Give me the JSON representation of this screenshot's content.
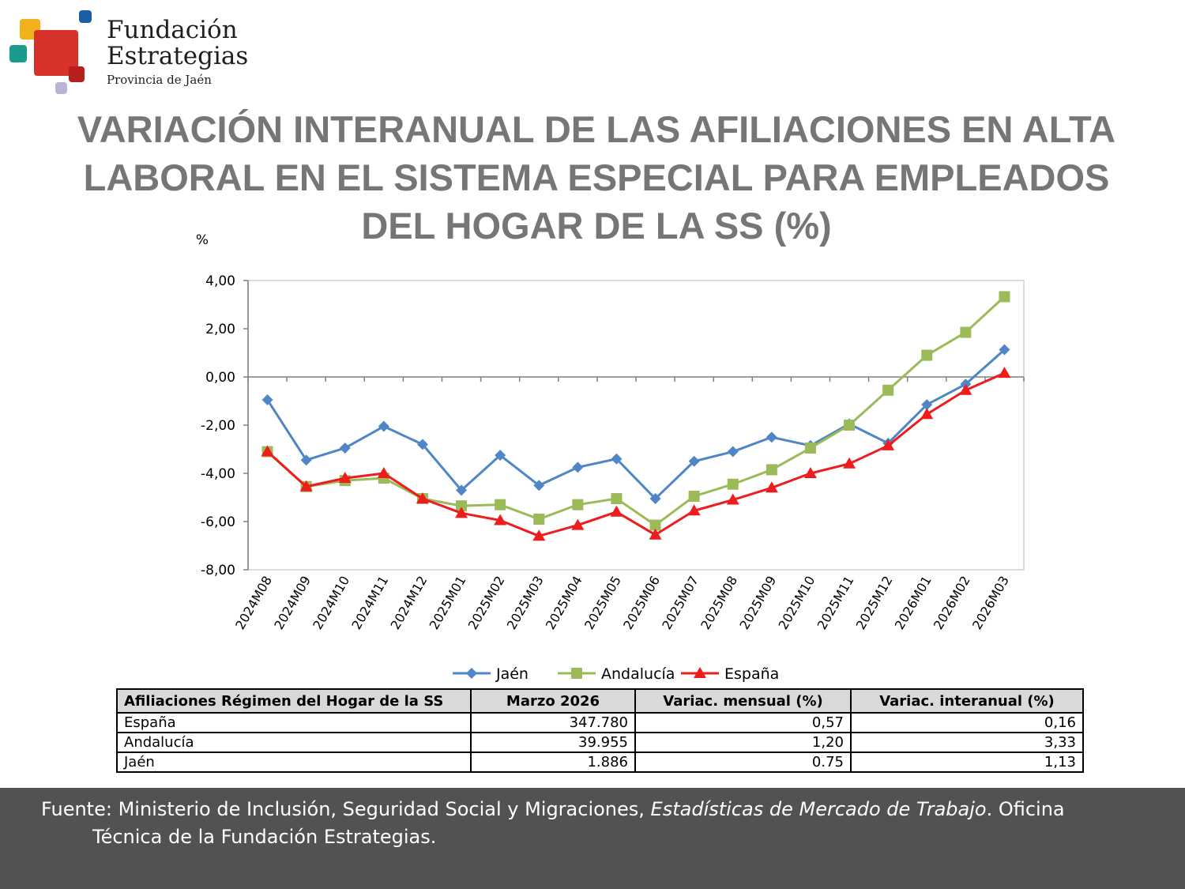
{
  "logo": {
    "line1": "Fundación",
    "line2": "Estrategias",
    "line3": "Provincia de Jaén"
  },
  "title": {
    "line1": "VARIACIÓN INTERANUAL DE LAS AFILIACIONES EN ALTA",
    "line2": "LABORAL EN EL SISTEMA ESPECIAL PARA EMPLEADOS",
    "line3": "DEL HOGAR DE LA SS (%)"
  },
  "chart_data": {
    "type": "line",
    "ylabel": "%",
    "ylim": [
      -8,
      4
    ],
    "yticks": [
      "4,00",
      "2,00",
      "0,00",
      "-2,00",
      "-4,00",
      "-6,00",
      "-8,00"
    ],
    "ytick_values": [
      4,
      2,
      0,
      -2,
      -4,
      -6,
      -8
    ],
    "categories": [
      "2024M08",
      "2024M09",
      "2024M10",
      "2024M11",
      "2024M12",
      "2025M01",
      "2025M02",
      "2025M03",
      "2025M04",
      "2025M05",
      "2025M06",
      "2025M07",
      "2025M08",
      "2025M09",
      "2025M10",
      "2025M11",
      "2025M12",
      "2026M01",
      "2026M02",
      "2026M03"
    ],
    "grid": false,
    "legend": "bottom",
    "series": [
      {
        "name": "Jaén",
        "color": "#4f86c6",
        "marker": "diamond",
        "values": [
          -0.95,
          -3.45,
          -2.95,
          -2.05,
          -2.8,
          -4.7,
          -3.25,
          -4.5,
          -3.75,
          -3.4,
          -5.05,
          -3.5,
          -3.1,
          -2.5,
          -2.85,
          -1.95,
          -2.75,
          -1.15,
          -0.3,
          1.13
        ]
      },
      {
        "name": "Andalucía",
        "color": "#9bbb59",
        "marker": "square",
        "values": [
          -3.1,
          -4.55,
          -4.3,
          -4.2,
          -5.05,
          -5.35,
          -5.3,
          -5.9,
          -5.3,
          -5.05,
          -6.15,
          -4.95,
          -4.45,
          -3.85,
          -2.95,
          -2.0,
          -0.55,
          0.9,
          1.85,
          3.33
        ]
      },
      {
        "name": "España",
        "color": "#ee1c1c",
        "marker": "triangle",
        "values": [
          -3.1,
          -4.55,
          -4.2,
          -4.0,
          -5.05,
          -5.65,
          -5.95,
          -6.6,
          -6.15,
          -5.6,
          -6.55,
          -5.55,
          -5.1,
          -4.6,
          -4.0,
          -3.6,
          -2.85,
          -1.55,
          -0.55,
          0.16
        ]
      }
    ]
  },
  "table": {
    "headers": [
      "Afiliaciones Régimen del Hogar de la SS",
      "Marzo 2026",
      "Variac. mensual (%)",
      "Variac. interanual (%)"
    ],
    "rows": [
      [
        "España",
        "347.780",
        "0,57",
        "0,16"
      ],
      [
        "Andalucía",
        "39.955",
        "1,20",
        "3,33"
      ],
      [
        "Jaén",
        "1.886",
        "0.75",
        "1,13"
      ]
    ]
  },
  "footer": {
    "part1": "Fuente: Ministerio de Inclusión, Seguridad Social y Migraciones, ",
    "italic": "Estadísticas de Mercado de Trabajo",
    "part2": ". Oficina",
    "line2": "Técnica de la Fundación Estrategias."
  },
  "colors": {
    "title": "#767676",
    "footer_bg": "#525252",
    "table_header_bg": "#d9d9d9",
    "logo_red": "#d7322a",
    "logo_yellow": "#f2b11b",
    "logo_teal": "#1a9b8e",
    "logo_blue": "#1a5ea8",
    "logo_lavender": "#b9b4d6"
  }
}
